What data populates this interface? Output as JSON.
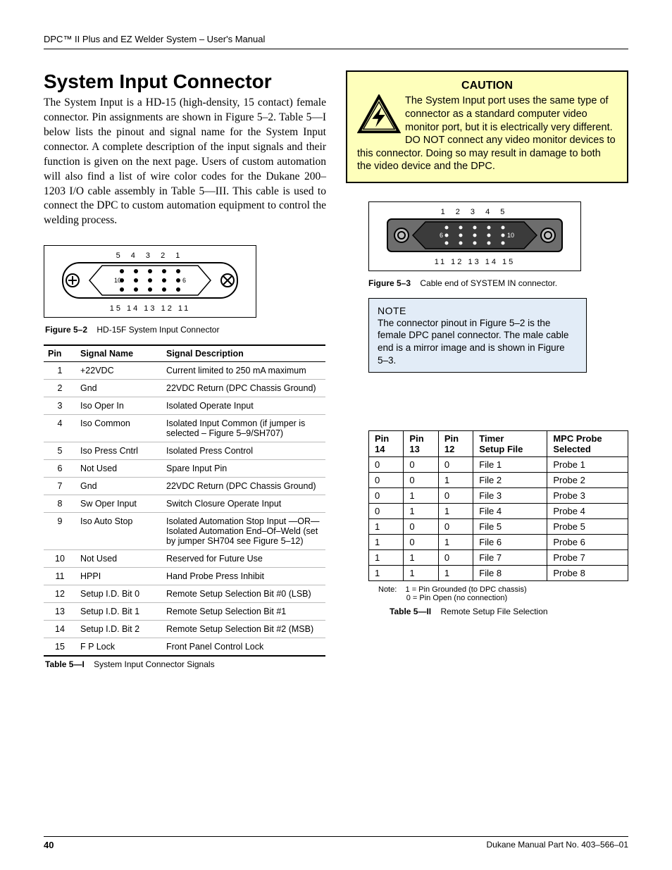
{
  "runningHead": "DPC™ II Plus and EZ Welder System – User's Manual",
  "heading": "System Input Connector",
  "intro": "The System Input is a HD-15 (high-density, 15 contact) female connector. Pin assignments are shown in Figure 5–2. Table 5—I below lists the pinout and signal name for the System Input connector. A complete description of the input signals and their function is given on the next page. Users of custom automation will also find a list of wire color codes for the Dukane 200–1203 I/O cable assembly in Table 5—III. This cable is used to connect the DPC to custom automation equipment to control the welding process.",
  "caution": {
    "title": "CAUTION",
    "text": "The System Input port uses the same type of connector as a standard computer video monitor port, but it is electrically very different. DO NOT connect any video monitor devices to this connector. Doing so may result in damage to both the video device and the DPC."
  },
  "figLeft": {
    "topLabels": "5  4  3  2  1",
    "midLeft": "10",
    "midRight": "6",
    "bottomLabels": "15 14 13 12 11",
    "captionBold": "Figure 5–2",
    "captionText": "HD-15F System Input Connector"
  },
  "figRight": {
    "topLabels": "1  2  3  4  5",
    "midLeft": "6",
    "midRight": "10",
    "bottomLabels": "11 12 13 14 15",
    "captionBold": "Figure 5–3",
    "captionText": "Cable end of SYSTEM IN connector."
  },
  "note": {
    "title": "NOTE",
    "text": "The connector pinout in Figure 5–2 is the female DPC panel connector. The male cable end is a mirror image and is shown in Figure 5–3."
  },
  "signalTable": {
    "headers": [
      "Pin",
      "Signal Name",
      "Signal Description"
    ],
    "rows": [
      [
        "1",
        "+22VDC",
        "Current limited to 250 mA maximum"
      ],
      [
        "2",
        "Gnd",
        "22VDC Return (DPC Chassis Ground)"
      ],
      [
        "3",
        "Iso Oper In",
        "Isolated Operate Input"
      ],
      [
        "4",
        "Iso Common",
        "Isolated Input Common  (if jumper is selected – Figure 5–9/SH707)"
      ],
      [
        "5",
        "Iso Press Cntrl",
        "Isolated Press Control"
      ],
      [
        "6",
        "Not Used",
        "Spare Input Pin"
      ],
      [
        "7",
        "Gnd",
        "22VDC Return (DPC Chassis Ground)"
      ],
      [
        "8",
        "Sw Oper Input",
        "Switch Closure Operate Input"
      ],
      [
        "9",
        "Iso Auto Stop",
        "Isolated Automation Stop Input —OR— Isolated Automation End–Of–Weld (set by jumper SH704  see Figure 5–12)"
      ],
      [
        "10",
        "Not Used",
        "Reserved for Future Use"
      ],
      [
        "11",
        "HPPI",
        "Hand Probe Press Inhibit"
      ],
      [
        "12",
        "Setup I.D. Bit 0",
        "Remote Setup Selection Bit #0 (LSB)"
      ],
      [
        "13",
        "Setup I.D. Bit 1",
        "Remote Setup Selection Bit #1"
      ],
      [
        "14",
        "Setup I.D. Bit 2",
        "Remote Setup Selection Bit #2 (MSB)"
      ],
      [
        "15",
        "F P Lock",
        "Front Panel Control Lock"
      ]
    ],
    "captionBold": "Table 5—I",
    "captionText": "System Input Connector Signals"
  },
  "setupTable": {
    "headers": [
      "Pin 14",
      "Pin 13",
      "Pin 12",
      "Timer Setup File",
      "MPC Probe Selected"
    ],
    "rows": [
      [
        "0",
        "0",
        "0",
        "File 1",
        "Probe 1"
      ],
      [
        "0",
        "0",
        "1",
        "File 2",
        "Probe 2"
      ],
      [
        "0",
        "1",
        "0",
        "File 3",
        "Probe 3"
      ],
      [
        "0",
        "1",
        "1",
        "File 4",
        "Probe 4"
      ],
      [
        "1",
        "0",
        "0",
        "File 5",
        "Probe 5"
      ],
      [
        "1",
        "0",
        "1",
        "File 6",
        "Probe 6"
      ],
      [
        "1",
        "1",
        "0",
        "File 7",
        "Probe 7"
      ],
      [
        "1",
        "1",
        "1",
        "File 8",
        "Probe 8"
      ]
    ],
    "noteLabel": "Note:",
    "noteLine1": "1 = Pin Grounded (to DPC chassis)",
    "noteLine2": "0 = Pin Open (no connection)",
    "captionBold": "Table 5—II",
    "captionText": "Remote Setup File Selection"
  },
  "footer": {
    "pageNum": "40",
    "partNo": "Dukane Manual Part No. 403–566–01"
  }
}
